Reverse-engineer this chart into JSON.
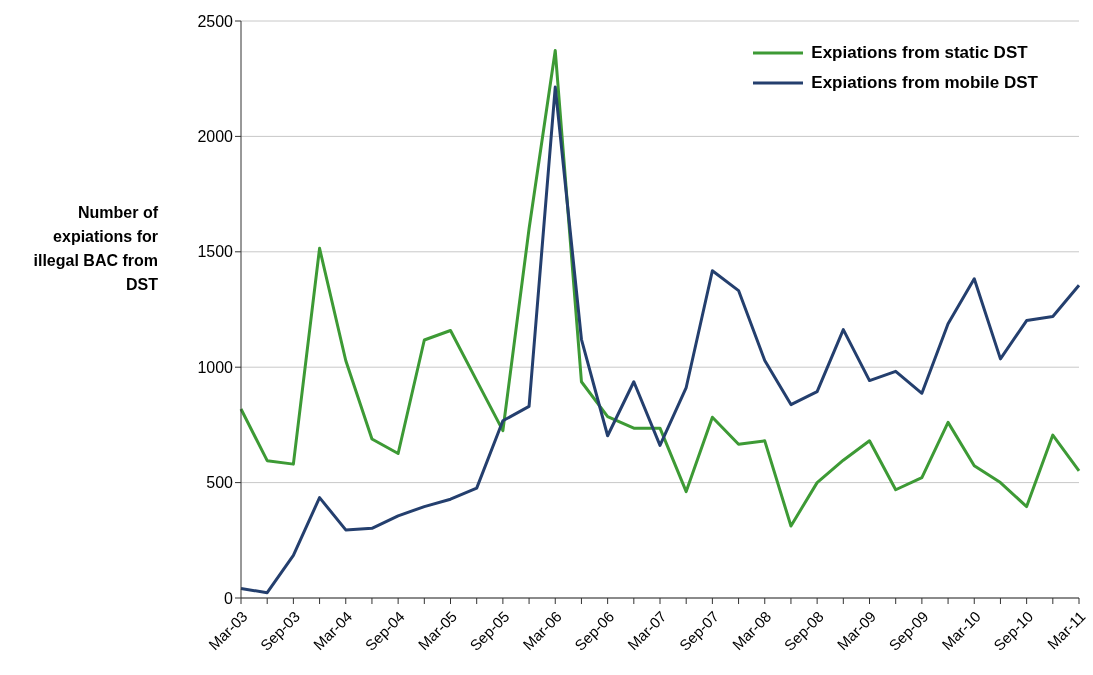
{
  "chart_data": {
    "type": "line",
    "ylabel": "Number of expiations for illegal BAC from DST",
    "categories": [
      "Mar-03",
      null,
      "Sep-03",
      null,
      "Mar-04",
      null,
      "Sep-04",
      null,
      "Mar-05",
      null,
      "Sep-05",
      null,
      "Mar-06",
      null,
      "Sep-06",
      null,
      "Mar-07",
      null,
      "Sep-07",
      null,
      "Mar-08",
      null,
      "Sep-08",
      null,
      "Mar-09",
      null,
      "Sep-09",
      null,
      "Mar-10",
      null,
      "Sep-10",
      null,
      "Mar-11"
    ],
    "series": [
      {
        "name": "Expiations from static DST",
        "color": "#3d9a35",
        "values": [
          819,
          595,
          580,
          1515,
          1029,
          689,
          626,
          1118,
          1159,
          942,
          725,
          1600,
          2372,
          937,
          786,
          736,
          736,
          461,
          783,
          666,
          681,
          312,
          500,
          597,
          681,
          469,
          522,
          761,
          573,
          500,
          396,
          706,
          551
        ]
      },
      {
        "name": "Expiations from mobile DST",
        "color": "#243f6e",
        "values": [
          41,
          23,
          185,
          435,
          295,
          302,
          356,
          396,
          428,
          476,
          768,
          830,
          2214,
          1121,
          703,
          937,
          661,
          912,
          1418,
          1332,
          1029,
          838,
          894,
          1163,
          942,
          982,
          887,
          1188,
          1383,
          1036,
          1202,
          1220,
          1355
        ]
      }
    ],
    "ylim": [
      0,
      2500
    ],
    "yticks": [
      0,
      500,
      1000,
      1500,
      2000,
      2500
    ],
    "grid": "y",
    "legend": "top right",
    "marker": "none",
    "line_style": "solid"
  }
}
